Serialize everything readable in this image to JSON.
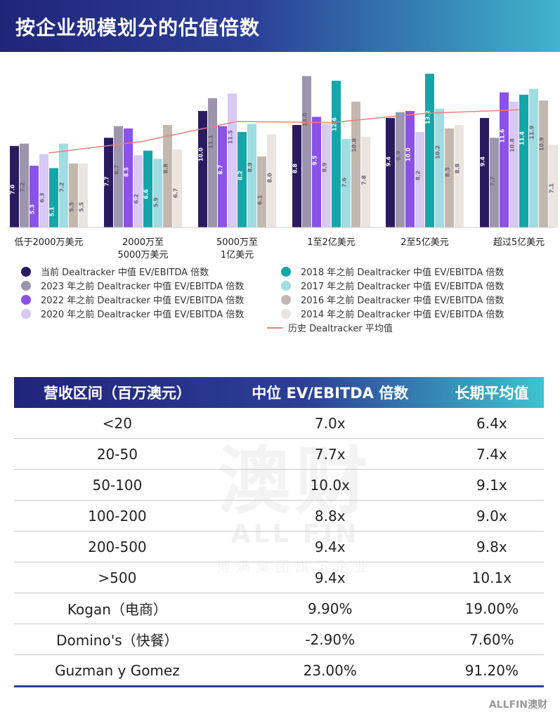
{
  "title": "按企业规模划分的估值倍数",
  "chart_data": {
    "type": "bar",
    "categories": [
      "低于2000万美元",
      "2000万至\n5000万美元",
      "5000万至\n1亿美元",
      "1至2亿美元",
      "2至5亿美元",
      "超过5亿美元"
    ],
    "series": [
      {
        "name": "当前 Dealtracker 中值 EV/EBITDA 倍数",
        "color": "#2a1b5e",
        "values": [
          7.0,
          7.7,
          10.0,
          8.8,
          9.4,
          9.4
        ]
      },
      {
        "name": "2023 年之前 Dealtracker 中值 EV/EBITDA 倍数",
        "color": "#9c95ad",
        "values": [
          7.2,
          8.7,
          11.1,
          13.0,
          9.9,
          7.7
        ]
      },
      {
        "name": "2022 年之前 Dealtracker 中值 EV/EBITDA 倍数",
        "color": "#8a52e6",
        "values": [
          5.3,
          8.5,
          8.7,
          9.5,
          10.0,
          11.6
        ]
      },
      {
        "name": "2020 年之前 Dealtracker 中值 EV/EBITDA 倍数",
        "color": "#d8c9f5",
        "values": [
          6.3,
          6.2,
          11.5,
          8.9,
          8.2,
          10.8
        ]
      },
      {
        "name": "2018 年之前 Dealtracker 中值 EV/EBITDA 倍数",
        "color": "#15a6a9",
        "values": [
          5.1,
          6.6,
          8.2,
          12.6,
          13.2,
          11.4
        ]
      },
      {
        "name": "2017 年之前 Dealtracker 中值 EV/EBITDA 倍数",
        "color": "#9fdde2",
        "values": [
          7.2,
          5.9,
          8.9,
          7.6,
          10.2,
          11.9
        ]
      },
      {
        "name": "2016 年之前 Dealtracker 中值 EV/EBITDA 倍数",
        "color": "#c3b8b0",
        "values": [
          5.5,
          8.8,
          6.1,
          10.8,
          8.5,
          10.9
        ]
      },
      {
        "name": "2014 年之前 Dealtracker 中值 EV/EBITDA 倍数",
        "color": "#ebe4df",
        "values": [
          5.5,
          6.7,
          8.0,
          7.8,
          8.8,
          7.1
        ]
      }
    ],
    "line": {
      "name": "历史 Dealtracker 平均值",
      "color": "#e8807a",
      "values": [
        6.4,
        7.4,
        9.1,
        9.0,
        9.8,
        10.1
      ]
    },
    "ylim": [
      0,
      13.2
    ],
    "legend_position": "bottom"
  },
  "table": {
    "headers": [
      "营收区间（百万澳元）",
      "中位 EV/EBITDA 倍数",
      "长期平均值"
    ],
    "rows": [
      [
        "<20",
        "7.0x",
        "6.4x"
      ],
      [
        "20-50",
        "7.7x",
        "7.4x"
      ],
      [
        "50-100",
        "10.0x",
        "9.1x"
      ],
      [
        "100-200",
        "8.8x",
        "9.0x"
      ],
      [
        "200-500",
        "9.4x",
        "9.8x"
      ],
      [
        ">500",
        "9.4x",
        "10.1x"
      ],
      [
        "Kogan（电商）",
        "9.90%",
        "19.00%"
      ],
      [
        "Domino's（快餐）",
        "-2.90%",
        "7.60%"
      ],
      [
        "Guzman y Gomez",
        "23.00%",
        "91.20%"
      ]
    ]
  },
  "watermark": {
    "cn": "澳财",
    "en": "ALL FIN",
    "sub": "博满集团旗下企业"
  },
  "footer_logo": "ALLFIN澳财"
}
